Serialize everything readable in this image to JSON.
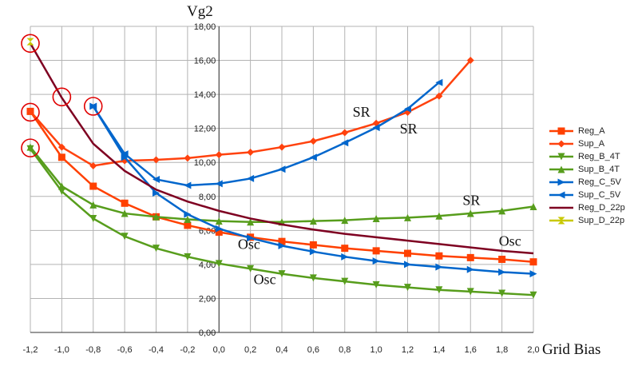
{
  "chart_data": {
    "type": "line",
    "title": "",
    "ylabel": "Vg2",
    "xlabel": "Grid Bias",
    "xlim": [
      -1.2,
      2.0
    ],
    "ylim": [
      0,
      18
    ],
    "x_ticks": [
      "-1,2",
      "-1,0",
      "-0,8",
      "-0,6",
      "-0,4",
      "-0,2",
      "0,0",
      "0,2",
      "0,4",
      "0,6",
      "0,8",
      "1,0",
      "1,2",
      "1,4",
      "1,6",
      "1,8",
      "2,0"
    ],
    "x_tick_values": [
      -1.2,
      -1.0,
      -0.8,
      -0.6,
      -0.4,
      -0.2,
      0.0,
      0.2,
      0.4,
      0.6,
      0.8,
      1.0,
      1.2,
      1.4,
      1.6,
      1.8,
      2.0
    ],
    "y_ticks": [
      "0,00",
      "2,00",
      "4,00",
      "6,00",
      "8,00",
      "10,00",
      "12,00",
      "14,00",
      "16,00",
      "18,00"
    ],
    "y_tick_values": [
      0,
      2,
      4,
      6,
      8,
      10,
      12,
      14,
      16,
      18
    ],
    "grid": true,
    "legend_position": "right",
    "series": [
      {
        "name": "Reg_A",
        "color": "#ff4000",
        "marker": "square",
        "x": [
          -1.2,
          -1.0,
          -0.8,
          -0.6,
          -0.4,
          -0.2,
          0.0,
          0.2,
          0.4,
          0.6,
          0.8,
          1.0,
          1.2,
          1.4,
          1.6,
          1.8,
          2.0
        ],
        "y": [
          13.0,
          10.3,
          8.6,
          7.6,
          6.8,
          6.3,
          5.9,
          5.6,
          5.35,
          5.15,
          4.95,
          4.8,
          4.65,
          4.5,
          4.4,
          4.3,
          4.15
        ]
      },
      {
        "name": "Sup_A",
        "color": "#ff420e",
        "marker": "diamond",
        "x": [
          -1.2,
          -1.0,
          -0.8,
          -0.6,
          -0.4,
          -0.2,
          0.0,
          0.2,
          0.4,
          0.6,
          0.8,
          1.0,
          1.2,
          1.4,
          1.6
        ],
        "y": [
          13.0,
          10.9,
          9.8,
          10.1,
          10.15,
          10.25,
          10.45,
          10.6,
          10.9,
          11.25,
          11.75,
          12.3,
          12.95,
          13.9,
          16.0
        ]
      },
      {
        "name": "Reg_B_4T",
        "color": "#579d1c",
        "marker": "triangle-down",
        "x": [
          -1.2,
          -1.0,
          -0.8,
          -0.6,
          -0.4,
          -0.2,
          0.0,
          0.2,
          0.4,
          0.6,
          0.8,
          1.0,
          1.2,
          1.4,
          1.6,
          1.8,
          2.0
        ],
        "y": [
          10.8,
          8.3,
          6.7,
          5.65,
          4.95,
          4.45,
          4.05,
          3.75,
          3.45,
          3.2,
          3.0,
          2.8,
          2.65,
          2.5,
          2.4,
          2.3,
          2.2
        ]
      },
      {
        "name": "Sup_B_4T",
        "color": "#579d1c",
        "marker": "triangle-up",
        "x": [
          -1.2,
          -1.0,
          -0.8,
          -0.6,
          -0.4,
          -0.2,
          0.0,
          0.2,
          0.4,
          0.6,
          0.8,
          1.0,
          1.2,
          1.4,
          1.6,
          1.8,
          2.0
        ],
        "y": [
          10.9,
          8.6,
          7.5,
          7.0,
          6.8,
          6.65,
          6.55,
          6.5,
          6.5,
          6.55,
          6.6,
          6.7,
          6.75,
          6.85,
          7.0,
          7.15,
          7.4
        ]
      },
      {
        "name": "Reg_C_5V",
        "color": "#0066cc",
        "marker": "triangle-right",
        "x": [
          -0.8,
          -0.6,
          -0.4,
          -0.2,
          0.0,
          0.2,
          0.4,
          0.6,
          0.8,
          1.0,
          1.2,
          1.4,
          1.6,
          1.8,
          2.0
        ],
        "y": [
          13.3,
          10.3,
          8.2,
          6.95,
          6.1,
          5.55,
          5.1,
          4.75,
          4.45,
          4.2,
          4.0,
          3.85,
          3.7,
          3.55,
          3.45
        ]
      },
      {
        "name": "Sup_C_5V",
        "color": "#0066cc",
        "marker": "triangle-left",
        "x": [
          -0.8,
          -0.6,
          -0.4,
          -0.2,
          0.0,
          0.2,
          0.4,
          0.6,
          0.8,
          1.0,
          1.2,
          1.4
        ],
        "y": [
          13.3,
          10.5,
          9.0,
          8.65,
          8.75,
          9.05,
          9.6,
          10.3,
          11.15,
          12.05,
          13.15,
          14.7
        ]
      },
      {
        "name": "Reg_D_22p",
        "color": "#7e0021",
        "marker": "bowtie",
        "x": [
          -1.2,
          -1.0,
          -0.8,
          -0.6,
          -0.4,
          -0.2,
          0.0,
          0.2,
          0.4,
          0.6,
          0.8,
          1.0,
          1.2,
          1.4,
          1.6,
          1.8,
          2.0
        ],
        "y": [
          17.0,
          13.8,
          11.1,
          9.5,
          8.4,
          7.7,
          7.15,
          6.7,
          6.35,
          6.05,
          5.8,
          5.6,
          5.4,
          5.2,
          5.0,
          4.8,
          4.65
        ]
      },
      {
        "name": "Sup_D_22p",
        "color": "#c8c800",
        "marker": "hourglass",
        "x": [
          -1.2
        ],
        "y": [
          17.1
        ]
      }
    ],
    "circled_points": [
      {
        "x": -1.2,
        "y": 17.0
      },
      {
        "x": -1.2,
        "y": 12.95
      },
      {
        "x": -1.2,
        "y": 10.85
      },
      {
        "x": -1.0,
        "y": 13.85
      },
      {
        "x": -0.8,
        "y": 13.3
      }
    ],
    "annotations": [
      {
        "text": "SR",
        "x": 0.85,
        "y": 12.7
      },
      {
        "text": "SR",
        "x": 1.15,
        "y": 11.7
      },
      {
        "text": "SR",
        "x": 1.55,
        "y": 7.5
      },
      {
        "text": "Osc",
        "x": 0.12,
        "y": 4.9
      },
      {
        "text": "Osc",
        "x": 0.22,
        "y": 2.85
      },
      {
        "text": "Osc",
        "x": 1.78,
        "y": 5.1
      }
    ]
  }
}
